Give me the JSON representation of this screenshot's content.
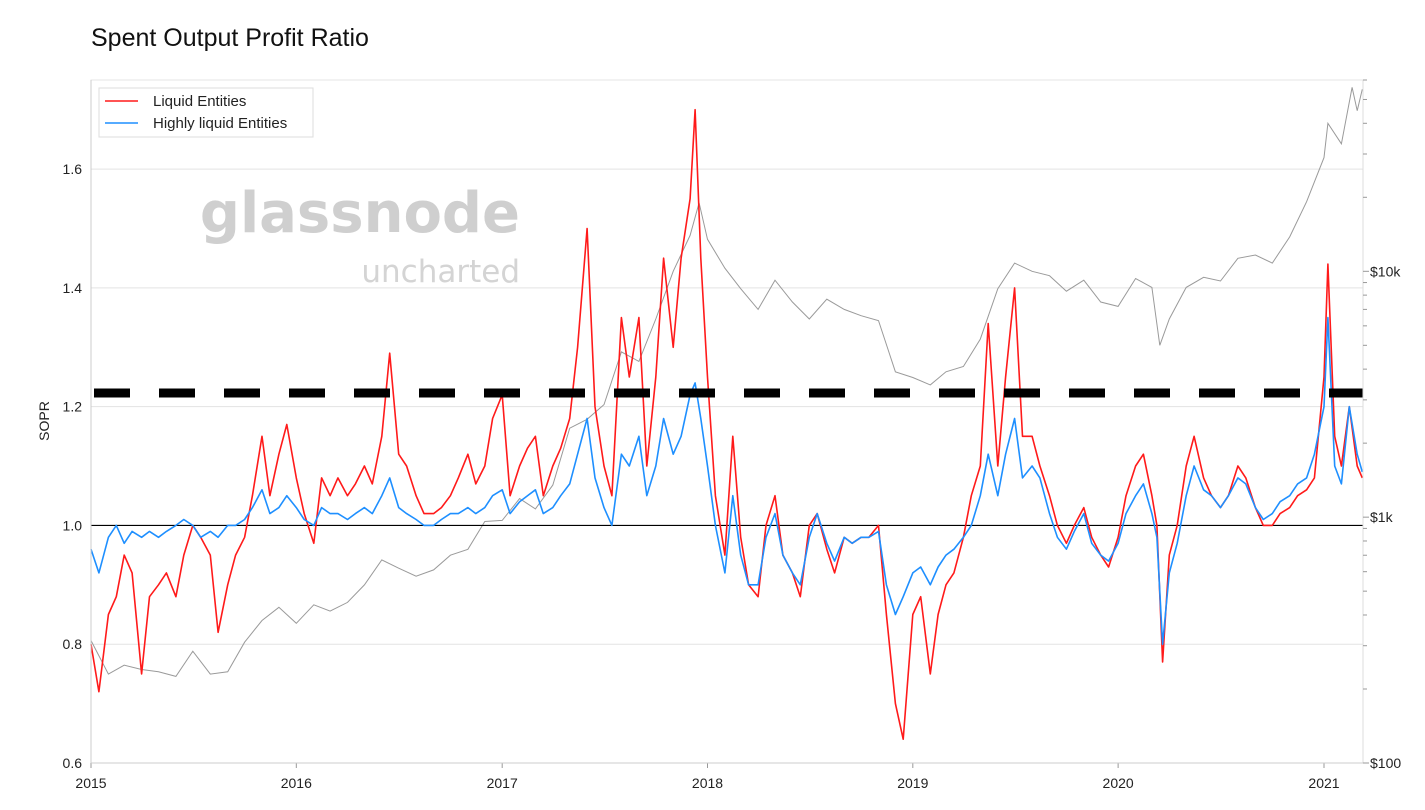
{
  "chart_data": {
    "type": "line",
    "title": "Spent Output Profit Ratio",
    "ylabel": "SOPR",
    "xlabel": "",
    "xlim": [
      "2015-01-01",
      "2021-03-15"
    ],
    "ylim": [
      0.6,
      1.75
    ],
    "y_ticks": [
      "0.6",
      "0.8",
      "1.0",
      "1.2",
      "1.4",
      "1.6"
    ],
    "x_ticks": [
      "2015",
      "2016",
      "2017",
      "2018",
      "2019",
      "2020",
      "2021"
    ],
    "y2_scale": "log",
    "y2lim": [
      100,
      60000
    ],
    "y2_ticks": [
      "$100",
      "$1k",
      "$10k"
    ],
    "grid": true,
    "legend_position": "top-left",
    "watermark": {
      "line1": "glassnode",
      "line2": "uncharted"
    },
    "reference_lines": [
      {
        "value": 1.0,
        "style": "solid",
        "color": "#000000"
      },
      {
        "value": 1.223,
        "style": "dashed",
        "color": "#000000"
      }
    ],
    "x": [
      "2015-01-01",
      "2015-01-15",
      "2015-02-01",
      "2015-02-15",
      "2015-03-01",
      "2015-03-15",
      "2015-04-01",
      "2015-04-15",
      "2015-05-01",
      "2015-05-15",
      "2015-06-01",
      "2015-06-15",
      "2015-07-01",
      "2015-07-15",
      "2015-08-01",
      "2015-08-15",
      "2015-09-01",
      "2015-09-15",
      "2015-10-01",
      "2015-10-15",
      "2015-11-01",
      "2015-11-15",
      "2015-12-01",
      "2015-12-15",
      "2016-01-01",
      "2016-01-15",
      "2016-02-01",
      "2016-02-15",
      "2016-03-01",
      "2016-03-15",
      "2016-04-01",
      "2016-04-15",
      "2016-05-01",
      "2016-05-15",
      "2016-06-01",
      "2016-06-15",
      "2016-07-01",
      "2016-07-15",
      "2016-08-01",
      "2016-08-15",
      "2016-09-01",
      "2016-09-15",
      "2016-10-01",
      "2016-10-15",
      "2016-11-01",
      "2016-11-15",
      "2016-12-01",
      "2016-12-15",
      "2017-01-01",
      "2017-01-15",
      "2017-02-01",
      "2017-02-15",
      "2017-03-01",
      "2017-03-15",
      "2017-04-01",
      "2017-04-15",
      "2017-05-01",
      "2017-05-15",
      "2017-06-01",
      "2017-06-15",
      "2017-07-01",
      "2017-07-15",
      "2017-08-01",
      "2017-08-15",
      "2017-09-01",
      "2017-09-15",
      "2017-10-01",
      "2017-10-15",
      "2017-11-01",
      "2017-11-15",
      "2017-12-01",
      "2017-12-10",
      "2017-12-20",
      "2018-01-01",
      "2018-01-15",
      "2018-02-01",
      "2018-02-15",
      "2018-03-01",
      "2018-03-15",
      "2018-04-01",
      "2018-04-15",
      "2018-05-01",
      "2018-05-15",
      "2018-06-01",
      "2018-06-15",
      "2018-07-01",
      "2018-07-15",
      "2018-08-01",
      "2018-08-15",
      "2018-09-01",
      "2018-09-15",
      "2018-10-01",
      "2018-10-15",
      "2018-11-01",
      "2018-11-15",
      "2018-12-01",
      "2018-12-15",
      "2019-01-01",
      "2019-01-15",
      "2019-02-01",
      "2019-02-15",
      "2019-03-01",
      "2019-03-15",
      "2019-04-01",
      "2019-04-15",
      "2019-05-01",
      "2019-05-15",
      "2019-06-01",
      "2019-06-15",
      "2019-07-01",
      "2019-07-15",
      "2019-08-01",
      "2019-08-15",
      "2019-09-01",
      "2019-09-15",
      "2019-10-01",
      "2019-10-15",
      "2019-11-01",
      "2019-11-15",
      "2019-12-01",
      "2019-12-15",
      "2020-01-01",
      "2020-01-15",
      "2020-02-01",
      "2020-02-15",
      "2020-03-01",
      "2020-03-10",
      "2020-03-20",
      "2020-04-01",
      "2020-04-15",
      "2020-05-01",
      "2020-05-15",
      "2020-06-01",
      "2020-06-15",
      "2020-07-01",
      "2020-07-15",
      "2020-08-01",
      "2020-08-15",
      "2020-09-01",
      "2020-09-15",
      "2020-10-01",
      "2020-10-15",
      "2020-11-01",
      "2020-11-15",
      "2020-12-01",
      "2020-12-15",
      "2021-01-01",
      "2021-01-08",
      "2021-01-20",
      "2021-02-01",
      "2021-02-15",
      "2021-03-01",
      "2021-03-10"
    ],
    "series": [
      {
        "name": "Liquid Entities",
        "color": "#ff1a1a",
        "axis": "left",
        "values": [
          0.8,
          0.72,
          0.85,
          0.88,
          0.95,
          0.92,
          0.75,
          0.88,
          0.9,
          0.92,
          0.88,
          0.95,
          1.0,
          0.98,
          0.95,
          0.82,
          0.9,
          0.95,
          0.98,
          1.05,
          1.15,
          1.05,
          1.12,
          1.17,
          1.08,
          1.02,
          0.97,
          1.08,
          1.05,
          1.08,
          1.05,
          1.07,
          1.1,
          1.07,
          1.15,
          1.29,
          1.12,
          1.1,
          1.05,
          1.02,
          1.02,
          1.03,
          1.05,
          1.08,
          1.12,
          1.07,
          1.1,
          1.18,
          1.22,
          1.05,
          1.1,
          1.13,
          1.15,
          1.05,
          1.1,
          1.13,
          1.18,
          1.3,
          1.5,
          1.2,
          1.1,
          1.05,
          1.35,
          1.25,
          1.35,
          1.1,
          1.25,
          1.45,
          1.3,
          1.45,
          1.55,
          1.7,
          1.45,
          1.25,
          1.05,
          0.95,
          1.15,
          0.98,
          0.9,
          0.88,
          1.0,
          1.05,
          0.95,
          0.92,
          0.88,
          1.0,
          1.02,
          0.96,
          0.92,
          0.98,
          0.97,
          0.98,
          0.98,
          1.0,
          0.85,
          0.7,
          0.64,
          0.85,
          0.88,
          0.75,
          0.85,
          0.9,
          0.92,
          0.98,
          1.05,
          1.1,
          1.34,
          1.1,
          1.25,
          1.4,
          1.15,
          1.15,
          1.1,
          1.05,
          1.0,
          0.97,
          1.0,
          1.03,
          0.98,
          0.95,
          0.93,
          0.98,
          1.05,
          1.1,
          1.12,
          1.05,
          1.0,
          0.77,
          0.95,
          1.0,
          1.1,
          1.15,
          1.08,
          1.05,
          1.03,
          1.05,
          1.1,
          1.08,
          1.03,
          1.0,
          1.0,
          1.02,
          1.03,
          1.05,
          1.06,
          1.08,
          1.25,
          1.44,
          1.15,
          1.1,
          1.2,
          1.1,
          1.08
        ]
      },
      {
        "name": "Highly liquid Entities",
        "color": "#1e8fff",
        "axis": "left",
        "values": [
          0.96,
          0.92,
          0.98,
          1.0,
          0.97,
          0.99,
          0.98,
          0.99,
          0.98,
          0.99,
          1.0,
          1.01,
          1.0,
          0.98,
          0.99,
          0.98,
          1.0,
          1.0,
          1.01,
          1.03,
          1.06,
          1.02,
          1.03,
          1.05,
          1.03,
          1.01,
          1.0,
          1.03,
          1.02,
          1.02,
          1.01,
          1.02,
          1.03,
          1.02,
          1.05,
          1.08,
          1.03,
          1.02,
          1.01,
          1.0,
          1.0,
          1.01,
          1.02,
          1.02,
          1.03,
          1.02,
          1.03,
          1.05,
          1.06,
          1.02,
          1.04,
          1.05,
          1.06,
          1.02,
          1.03,
          1.05,
          1.07,
          1.12,
          1.18,
          1.08,
          1.03,
          1.0,
          1.12,
          1.1,
          1.15,
          1.05,
          1.1,
          1.18,
          1.12,
          1.15,
          1.22,
          1.24,
          1.18,
          1.1,
          1.0,
          0.92,
          1.05,
          0.95,
          0.9,
          0.9,
          0.98,
          1.02,
          0.95,
          0.92,
          0.9,
          0.98,
          1.02,
          0.97,
          0.94,
          0.98,
          0.97,
          0.98,
          0.98,
          0.99,
          0.9,
          0.85,
          0.88,
          0.92,
          0.93,
          0.9,
          0.93,
          0.95,
          0.96,
          0.98,
          1.0,
          1.05,
          1.12,
          1.05,
          1.12,
          1.18,
          1.08,
          1.1,
          1.08,
          1.02,
          0.98,
          0.96,
          0.99,
          1.02,
          0.97,
          0.95,
          0.94,
          0.97,
          1.02,
          1.05,
          1.07,
          1.02,
          0.98,
          0.8,
          0.92,
          0.97,
          1.05,
          1.1,
          1.06,
          1.05,
          1.03,
          1.05,
          1.08,
          1.07,
          1.03,
          1.01,
          1.02,
          1.04,
          1.05,
          1.07,
          1.08,
          1.12,
          1.2,
          1.35,
          1.1,
          1.07,
          1.2,
          1.12,
          1.09
        ]
      }
    ],
    "price_series": {
      "color": "#9a9a9a",
      "axis": "right",
      "x": [
        "2015-01-01",
        "2015-02-01",
        "2015-03-01",
        "2015-04-01",
        "2015-05-01",
        "2015-06-01",
        "2015-07-01",
        "2015-08-01",
        "2015-09-01",
        "2015-10-01",
        "2015-11-01",
        "2015-12-01",
        "2016-01-01",
        "2016-02-01",
        "2016-03-01",
        "2016-04-01",
        "2016-05-01",
        "2016-06-01",
        "2016-07-01",
        "2016-08-01",
        "2016-09-01",
        "2016-10-01",
        "2016-11-01",
        "2016-12-01",
        "2017-01-01",
        "2017-02-01",
        "2017-03-01",
        "2017-04-01",
        "2017-05-01",
        "2017-06-01",
        "2017-07-01",
        "2017-08-01",
        "2017-09-01",
        "2017-10-01",
        "2017-11-01",
        "2017-12-01",
        "2017-12-17",
        "2018-01-01",
        "2018-02-01",
        "2018-03-01",
        "2018-04-01",
        "2018-05-01",
        "2018-06-01",
        "2018-07-01",
        "2018-08-01",
        "2018-09-01",
        "2018-10-01",
        "2018-11-01",
        "2018-12-01",
        "2019-01-01",
        "2019-02-01",
        "2019-03-01",
        "2019-04-01",
        "2019-05-01",
        "2019-06-01",
        "2019-07-01",
        "2019-08-01",
        "2019-09-01",
        "2019-10-01",
        "2019-11-01",
        "2019-12-01",
        "2020-01-01",
        "2020-02-01",
        "2020-03-01",
        "2020-03-15",
        "2020-04-01",
        "2020-05-01",
        "2020-06-01",
        "2020-07-01",
        "2020-08-01",
        "2020-09-01",
        "2020-10-01",
        "2020-11-01",
        "2020-12-01",
        "2021-01-01",
        "2021-01-08",
        "2021-02-01",
        "2021-02-20",
        "2021-03-01",
        "2021-03-10"
      ],
      "values": [
        315,
        230,
        250,
        240,
        235,
        225,
        285,
        230,
        235,
        310,
        380,
        430,
        370,
        440,
        415,
        450,
        530,
        670,
        620,
        575,
        610,
        700,
        740,
        960,
        970,
        1190,
        1080,
        1350,
        2300,
        2500,
        2870,
        4700,
        4300,
        6400,
        10000,
        14000,
        19000,
        13500,
        10300,
        8500,
        7000,
        9200,
        7500,
        6400,
        7700,
        7000,
        6600,
        6300,
        3900,
        3700,
        3450,
        3900,
        4100,
        5300,
        8500,
        10800,
        10000,
        9600,
        8300,
        9200,
        7500,
        7200,
        9350,
        8600,
        5000,
        6400,
        8600,
        9450,
        9130,
        11300,
        11650,
        10800,
        13800,
        19200,
        29000,
        40000,
        33000,
        56000,
        45000,
        55000
      ]
    }
  }
}
